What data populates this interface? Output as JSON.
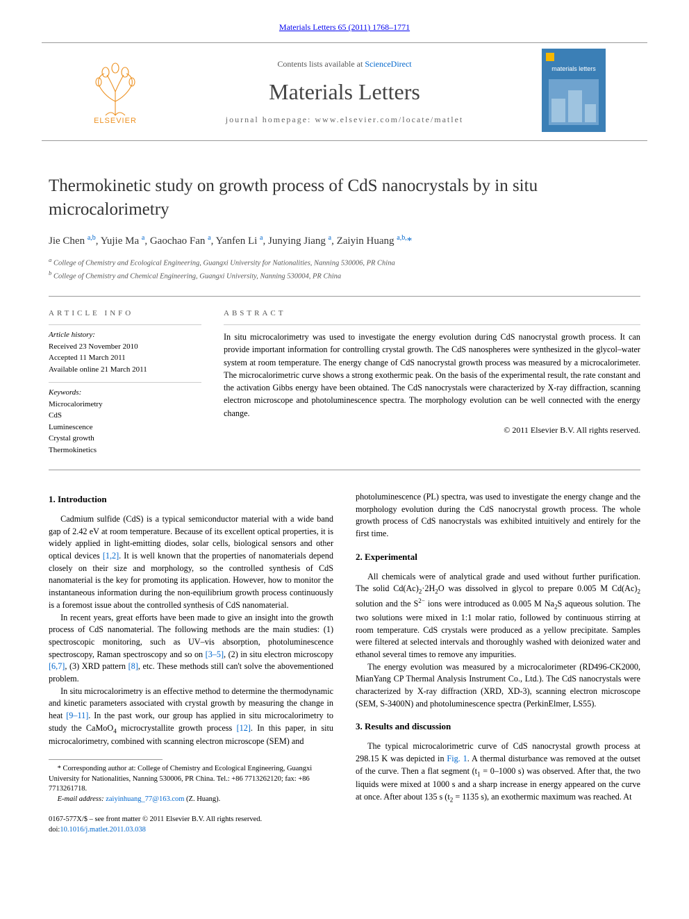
{
  "header": {
    "top_link_journal": "Materials Letters",
    "top_link_ref": "65 (2011) 1768–1771",
    "contents_prefix": "Contents lists available at ",
    "contents_link": "ScienceDirect",
    "journal_name": "Materials Letters",
    "homepage_prefix": "journal homepage: ",
    "homepage_url": "www.elsevier.com/locate/matlet",
    "publisher_logo_label": "ELSEVIER",
    "cover_label": "materials letters"
  },
  "colors": {
    "link": "#0066cc",
    "text": "#000000",
    "muted": "#555555",
    "rule": "#999999",
    "elsevier_orange": "#ed9121",
    "cover_blue": "#3b7fb6",
    "cover_accent": "#f5b700"
  },
  "article": {
    "title": "Thermokinetic study on growth process of CdS nanocrystals by in situ microcalorimetry",
    "authors_html": "Jie Chen <sup>a,b</sup>, Yujie Ma <sup>a</sup>, Gaochao Fan <sup>a</sup>, Yanfen Li <sup>a</sup>, Junying Jiang <sup>a</sup>, Zaiyin Huang <sup>a,b,</sup><span class='corr-star'>*</span>",
    "affiliations": [
      "a College of Chemistry and Ecological Engineering, Guangxi University for Nationalities, Nanning 530006, PR China",
      "b College of Chemistry and Chemical Engineering, Guangxi University, Nanning 530004, PR China"
    ]
  },
  "info": {
    "heading": "ARTICLE INFO",
    "history_label": "Article history:",
    "history": [
      "Received 23 November 2010",
      "Accepted 11 March 2011",
      "Available online 21 March 2011"
    ],
    "keywords_label": "Keywords:",
    "keywords": [
      "Microcalorimetry",
      "CdS",
      "Luminescence",
      "Crystal growth",
      "Thermokinetics"
    ]
  },
  "abstract": {
    "heading": "ABSTRACT",
    "text": "In situ microcalorimetry was used to investigate the energy evolution during CdS nanocrystal growth process. It can provide important information for controlling crystal growth. The CdS nanospheres were synthesized in the glycol–water system at room temperature. The energy change of CdS nanocrystal growth process was measured by a microcalorimeter. The microcalorimetric curve shows a strong exothermic peak. On the basis of the experimental result, the rate constant and the activation Gibbs energy have been obtained. The CdS nanocrystals were characterized by X-ray diffraction, scanning electron microscope and photoluminescence spectra. The morphology evolution can be well connected with the energy change.",
    "copyright": "© 2011 Elsevier B.V. All rights reserved."
  },
  "sections": {
    "intro_heading": "1. Introduction",
    "intro_paras": [
      "Cadmium sulfide (CdS) is a typical semiconductor material with a wide band gap of 2.42 eV at room temperature. Because of its excellent optical properties, it is widely applied in light-emitting diodes, solar cells, biological sensors and other optical devices <a href='#'>[1,2]</a>. It is well known that the properties of nanomaterials depend closely on their size and morphology, so the controlled synthesis of CdS nanomaterial is the key for promoting its application. However, how to monitor the instantaneous information during the non-equilibrium growth process continuously is a foremost issue about the controlled synthesis of CdS nanomaterial.",
      "In recent years, great efforts have been made to give an insight into the growth process of CdS nanomaterial. The following methods are the main studies: (1) spectroscopic monitoring, such as UV–vis absorption, photoluminescence spectroscopy, Raman spectroscopy and so on <a href='#'>[3–5]</a>, (2) in situ electron microscopy <a href='#'>[6,7]</a>, (3) XRD pattern <a href='#'>[8]</a>, etc. These methods still can't solve the abovementioned problem.",
      "In situ microcalorimetry is an effective method to determine the thermodynamic and kinetic parameters associated with crystal growth by measuring the change in heat <a href='#'>[9–11]</a>. In the past work, our group has applied in situ microcalorimetry to study the CaMoO<sub>4</sub> microcrystallite growth process <a href='#'>[12]</a>. In this paper, in situ microcalorimetry, combined with scanning electron microscope (SEM) and"
    ],
    "intro_continuation": "photoluminescence (PL) spectra, was used to investigate the energy change and the morphology evolution during the CdS nanocrystal growth process. The whole growth process of CdS nanocrystals was exhibited intuitively and entirely for the first time.",
    "exp_heading": "2. Experimental",
    "exp_paras": [
      "All chemicals were of analytical grade and used without further purification. The solid Cd(Ac)<sub>2</sub>·2H<sub>2</sub>O was dissolved in glycol to prepare 0.005 M Cd(Ac)<sub>2</sub> solution and the S<sup class='chem'>2−</sup> ions were introduced as 0.005 M Na<sub>2</sub>S aqueous solution. The two solutions were mixed in 1:1 molar ratio, followed by continuous stirring at room temperature. CdS crystals were produced as a yellow precipitate. Samples were filtered at selected intervals and thoroughly washed with deionized water and ethanol several times to remove any impurities.",
      "The energy evolution was measured by a microcalorimeter (RD496-CK2000, MianYang CP Thermal Analysis Instrument Co., Ltd.). The CdS nanocrystals were characterized by X-ray diffraction (XRD, XD-3), scanning electron microscope (SEM, S-3400N) and photoluminescence spectra (PerkinElmer, LS55)."
    ],
    "results_heading": "3. Results and discussion",
    "results_paras": [
      "The typical microcalorimetric curve of CdS nanocrystal growth process at 298.15 K was depicted in <a href='#'>Fig. 1</a>. A thermal disturbance was removed at the outset of the curve. Then a flat segment (t<sub>1</sub> = 0–1000 s) was observed. After that, the two liquids were mixed at 1000 s and a sharp increase in energy appeared on the curve at once. After about 135 s (t<sub>2</sub> = 1135 s), an exothermic maximum was reached. At"
    ]
  },
  "footnotes": {
    "corr": "* Corresponding author at: College of Chemistry and Ecological Engineering, Guangxi University for Nationalities, Nanning 530006, PR China. Tel.: +86 7713262120; fax: +86 7713261718.",
    "email_label": "E-mail address: ",
    "email": "zaiyinhuang_77@163.com",
    "email_suffix": " (Z. Huang)."
  },
  "footer": {
    "line1": "0167-577X/$ – see front matter © 2011 Elsevier B.V. All rights reserved.",
    "doi_label": "doi:",
    "doi": "10.1016/j.matlet.2011.03.038"
  }
}
